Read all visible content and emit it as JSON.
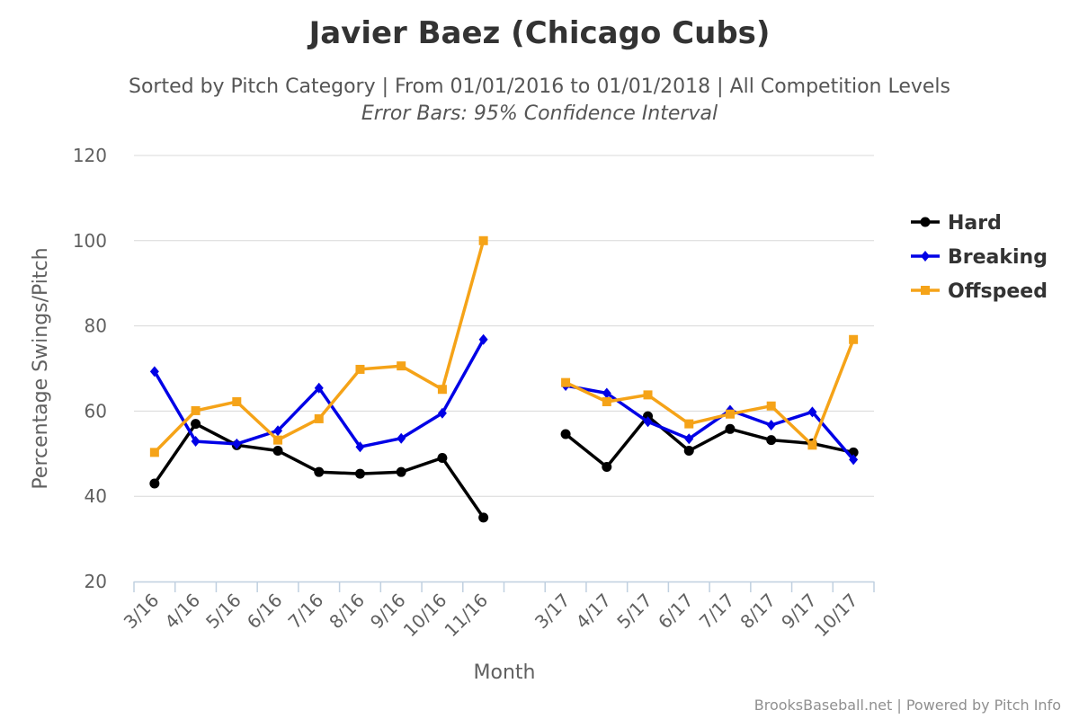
{
  "chart_data": {
    "type": "line",
    "title": "Javier Baez (Chicago Cubs)",
    "subtitle": "Sorted by Pitch Category | From 01/01/2016 to 01/01/2018 | All Competition Levels",
    "subtitle2": "Error Bars: 95% Confidence Interval",
    "xlabel": "Month",
    "ylabel": "Percentage Swings/Pitch",
    "ylim": [
      20,
      120
    ],
    "yticks": [
      20,
      40,
      60,
      80,
      100,
      120
    ],
    "grid": true,
    "legend_position": "right",
    "categories": [
      "3/16",
      "4/16",
      "5/16",
      "6/16",
      "7/16",
      "8/16",
      "9/16",
      "10/16",
      "11/16",
      "",
      "3/17",
      "4/17",
      "5/17",
      "6/17",
      "7/17",
      "8/17",
      "9/17",
      "10/17"
    ],
    "series": [
      {
        "name": "Hard",
        "color": "#000000",
        "marker": "circle",
        "values": [
          43.0,
          57.0,
          52.0,
          50.7,
          45.7,
          45.3,
          45.7,
          49.0,
          35.0,
          null,
          54.6,
          46.9,
          58.8,
          50.7,
          55.8,
          53.2,
          52.4,
          50.3
        ]
      },
      {
        "name": "Breaking",
        "color": "#0000e6",
        "marker": "diamond",
        "values": [
          69.3,
          52.9,
          52.3,
          55.4,
          65.4,
          51.6,
          53.6,
          59.5,
          76.8,
          null,
          66.0,
          64.2,
          57.5,
          53.5,
          60.2,
          56.7,
          59.8,
          48.6
        ]
      },
      {
        "name": "Offspeed",
        "color": "#f5a318",
        "marker": "square",
        "values": [
          50.3,
          60.1,
          62.2,
          53.2,
          58.2,
          69.8,
          70.6,
          65.1,
          100.0,
          null,
          66.7,
          62.2,
          63.8,
          57.0,
          59.3,
          61.2,
          52.0,
          76.8
        ]
      }
    ]
  },
  "credits": "BrooksBaseball.net | Powered by Pitch Info"
}
